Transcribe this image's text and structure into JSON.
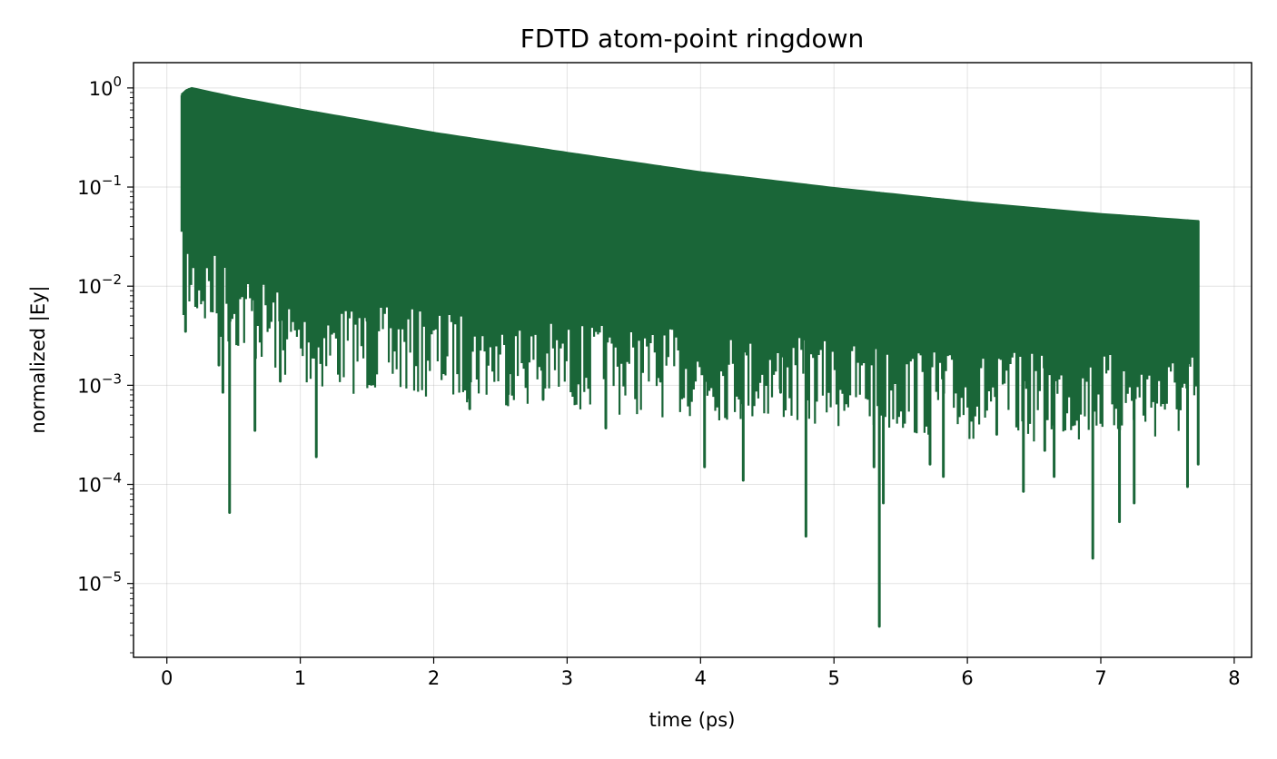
{
  "chart_data": {
    "type": "line",
    "title": "FDTD atom-point ringdown",
    "xlabel": "time (ps)",
    "ylabel": "normalized |Ey|",
    "xlim": [
      -0.25,
      8.13
    ],
    "ylim": [
      1.8e-06,
      1.8
    ],
    "yscale": "log",
    "grid": true,
    "line_color": "#1a6638",
    "x_ticks": [
      0,
      1,
      2,
      3,
      4,
      5,
      6,
      7,
      8
    ],
    "x_tick_labels": [
      "0",
      "1",
      "2",
      "3",
      "4",
      "5",
      "6",
      "7",
      "8"
    ],
    "y_ticks": [
      1e-05,
      0.0001,
      0.001,
      0.01,
      0.1,
      1
    ],
    "y_tick_labels": [
      {
        "base": "10",
        "exp": "−5"
      },
      {
        "base": "10",
        "exp": "−4"
      },
      {
        "base": "10",
        "exp": "−3"
      },
      {
        "base": "10",
        "exp": "−2"
      },
      {
        "base": "10",
        "exp": "−1"
      },
      {
        "base": "10",
        "exp": "0"
      }
    ],
    "series": [
      {
        "envelope": {
          "x": [
            0.11,
            0.17,
            0.5,
            1.0,
            2.0,
            3.0,
            4.0,
            5.0,
            6.0,
            7.0,
            7.73
          ],
          "y": [
            0.85,
            1.0,
            0.8,
            0.6,
            0.35,
            0.22,
            0.14,
            0.097,
            0.07,
            0.053,
            0.045
          ]
        },
        "lower_band": {
          "x": [
            0.11,
            1.0,
            2.0,
            3.0,
            4.0,
            5.0,
            6.0,
            7.0,
            7.73
          ],
          "y": [
            0.05,
            0.01,
            0.008,
            0.006,
            0.005,
            0.004,
            0.003,
            0.003,
            0.003
          ]
        },
        "dips": [
          {
            "x": 0.14,
            "y": 0.0035
          },
          {
            "x": 0.39,
            "y": 0.0016
          },
          {
            "x": 0.42,
            "y": 0.00085
          },
          {
            "x": 0.47,
            "y": 5.2e-05
          },
          {
            "x": 0.66,
            "y": 0.00035
          },
          {
            "x": 0.85,
            "y": 0.0011
          },
          {
            "x": 1.12,
            "y": 0.00019
          },
          {
            "x": 1.5,
            "y": 0.0045
          },
          {
            "x": 2.27,
            "y": 0.00058
          },
          {
            "x": 2.56,
            "y": 0.00082
          },
          {
            "x": 2.82,
            "y": 0.00072
          },
          {
            "x": 3.29,
            "y": 0.00037
          },
          {
            "x": 3.7,
            "y": 0.0011
          },
          {
            "x": 4.03,
            "y": 0.00015
          },
          {
            "x": 4.32,
            "y": 0.00011
          },
          {
            "x": 4.6,
            "y": 0.00085
          },
          {
            "x": 4.79,
            "y": 3e-05
          },
          {
            "x": 5.3,
            "y": 0.00015
          },
          {
            "x": 5.34,
            "y": 3.7e-06
          },
          {
            "x": 5.37,
            "y": 6.5e-05
          },
          {
            "x": 5.72,
            "y": 0.00016
          },
          {
            "x": 5.82,
            "y": 0.00012
          },
          {
            "x": 6.22,
            "y": 0.00032
          },
          {
            "x": 6.42,
            "y": 8.5e-05
          },
          {
            "x": 6.58,
            "y": 0.00022
          },
          {
            "x": 6.65,
            "y": 0.00012
          },
          {
            "x": 6.94,
            "y": 1.8e-05
          },
          {
            "x": 7.14,
            "y": 4.2e-05
          },
          {
            "x": 7.25,
            "y": 6.5e-05
          },
          {
            "x": 7.65,
            "y": 9.5e-05
          },
          {
            "x": 7.73,
            "y": 0.00016
          }
        ]
      }
    ]
  }
}
